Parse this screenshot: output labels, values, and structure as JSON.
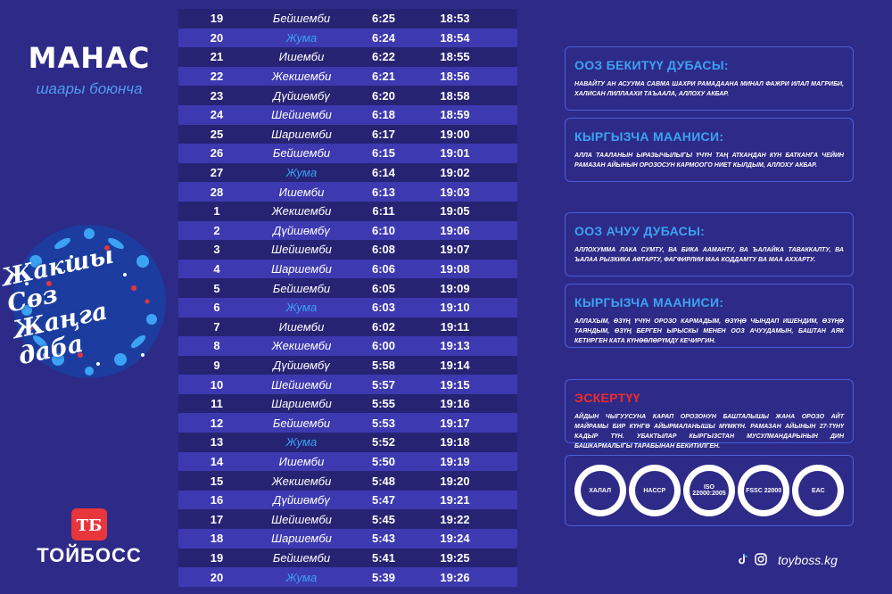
{
  "header": {
    "city": "МАНАС",
    "subtitle": "шаары боюнча"
  },
  "ornament": {
    "line1": "Жакшы Сөз",
    "line2": "Жаңга даба"
  },
  "brand": {
    "name": "ТОЙБОСС",
    "logo_text": "ТБ"
  },
  "colors": {
    "background": "#2e2a87",
    "accent_blue": "#3ca3f4",
    "warning_red": "#ee2c2c"
  },
  "table": {
    "rows": [
      {
        "day": "19",
        "weekday": "Бейшемби",
        "suhoor": "6:25",
        "iftar": "18:53",
        "friday": false
      },
      {
        "day": "20",
        "weekday": "Жума",
        "suhoor": "6:24",
        "iftar": "18:54",
        "friday": true
      },
      {
        "day": "21",
        "weekday": "Ишемби",
        "suhoor": "6:22",
        "iftar": "18:55",
        "friday": false
      },
      {
        "day": "22",
        "weekday": "Жекшемби",
        "suhoor": "6:21",
        "iftar": "18:56",
        "friday": false
      },
      {
        "day": "23",
        "weekday": "Дүйшөмбү",
        "suhoor": "6:20",
        "iftar": "18:58",
        "friday": false
      },
      {
        "day": "24",
        "weekday": "Шейшемби",
        "suhoor": "6:18",
        "iftar": "18:59",
        "friday": false
      },
      {
        "day": "25",
        "weekday": "Шаршемби",
        "suhoor": "6:17",
        "iftar": "19:00",
        "friday": false
      },
      {
        "day": "26",
        "weekday": "Бейшемби",
        "suhoor": "6:15",
        "iftar": "19:01",
        "friday": false
      },
      {
        "day": "27",
        "weekday": "Жума",
        "suhoor": "6:14",
        "iftar": "19:02",
        "friday": true
      },
      {
        "day": "28",
        "weekday": "Ишемби",
        "suhoor": "6:13",
        "iftar": "19:03",
        "friday": false
      },
      {
        "day": "1",
        "weekday": "Жекшемби",
        "suhoor": "6:11",
        "iftar": "19:05",
        "friday": false
      },
      {
        "day": "2",
        "weekday": "Дүйшөмбү",
        "suhoor": "6:10",
        "iftar": "19:06",
        "friday": false
      },
      {
        "day": "3",
        "weekday": "Шейшемби",
        "suhoor": "6:08",
        "iftar": "19:07",
        "friday": false
      },
      {
        "day": "4",
        "weekday": "Шаршемби",
        "suhoor": "6:06",
        "iftar": "19:08",
        "friday": false
      },
      {
        "day": "5",
        "weekday": "Бейшемби",
        "suhoor": "6:05",
        "iftar": "19:09",
        "friday": false
      },
      {
        "day": "6",
        "weekday": "Жума",
        "suhoor": "6:03",
        "iftar": "19:10",
        "friday": true
      },
      {
        "day": "7",
        "weekday": "Ишемби",
        "suhoor": "6:02",
        "iftar": "19:11",
        "friday": false
      },
      {
        "day": "8",
        "weekday": "Жекшемби",
        "suhoor": "6:00",
        "iftar": "19:13",
        "friday": false
      },
      {
        "day": "9",
        "weekday": "Дүйшөмбү",
        "suhoor": "5:58",
        "iftar": "19:14",
        "friday": false
      },
      {
        "day": "10",
        "weekday": "Шейшемби",
        "suhoor": "5:57",
        "iftar": "19:15",
        "friday": false
      },
      {
        "day": "11",
        "weekday": "Шаршемби",
        "suhoor": "5:55",
        "iftar": "19:16",
        "friday": false
      },
      {
        "day": "12",
        "weekday": "Бейшемби",
        "suhoor": "5:53",
        "iftar": "19:17",
        "friday": false
      },
      {
        "day": "13",
        "weekday": "Жума",
        "suhoor": "5:52",
        "iftar": "19:18",
        "friday": true
      },
      {
        "day": "14",
        "weekday": "Ишемби",
        "suhoor": "5:50",
        "iftar": "19:19",
        "friday": false
      },
      {
        "day": "15",
        "weekday": "Жекшемби",
        "suhoor": "5:48",
        "iftar": "19:20",
        "friday": false
      },
      {
        "day": "16",
        "weekday": "Дүйшөмбү",
        "suhoor": "5:47",
        "iftar": "19:21",
        "friday": false
      },
      {
        "day": "17",
        "weekday": "Шейшемби",
        "suhoor": "5:45",
        "iftar": "19:22",
        "friday": false
      },
      {
        "day": "18",
        "weekday": "Шаршемби",
        "suhoor": "5:43",
        "iftar": "19:24",
        "friday": false
      },
      {
        "day": "19",
        "weekday": "Бейшемби",
        "suhoor": "5:41",
        "iftar": "19:25",
        "friday": false
      },
      {
        "day": "20",
        "weekday": "Жума",
        "suhoor": "5:39",
        "iftar": "19:26",
        "friday": true
      }
    ]
  },
  "panels": {
    "closing_dua": {
      "title": "ООЗ БЕКИТҮҮ ДУБАСЫ:",
      "text": "НАВАЙТУ АН АСУУМА САВМА ШАХРИ РАМАДААНА МИНАЛ ФАЖРИ ИЛАЛ МАГРИБИ, ХАЛИСАН ЛИЛЛААХИ ТАЪААЛА, АЛЛОХУ АКБАР."
    },
    "closing_meaning": {
      "title": "КЫРГЫЗЧА МААНИСИ:",
      "text": "АЛЛА ТААЛАНЫН ЫРАЗЫЧЫЛЫГЫ ҮЧҮН ТАҢ АТКАНДАН КҮН БАТКАНГА ЧЕЙИН РАМАЗАН АЙЫНЫН ОРОЗОСУН КАРМООГО НИЕТ КЫЛДЫМ, АЛЛОХУ АКБАР."
    },
    "opening_dua": {
      "title": "ООЗ  АЧУУ ДУБАСЫ:",
      "text": "АЛЛОХУММА ЛАКА СУМТУ, ВА БИКА ААМАНТУ, ВА ЪАЛАЙКА ТАВАККАЛТУ, ВА ЪАЛАА РЫЗКИКА АФТАРТУ, ФАГФИРЛИИ МАА КОДДАМТУ ВА МАА АХХАРТУ."
    },
    "opening_meaning": {
      "title": "КЫРГЫЗЧА МААНИСИ:",
      "text": "АЛЛАХЫМ, ӨЗҮҢ ҮЧҮН ОРОЗО КАРМАДЫМ, ӨЗҮҢӨ ЧЫНДАП ИШЕНДИМ, ӨЗҮҢӨ ТАЯНДЫМ, ӨЗҮҢ БЕРГЕН ЫРЫСКЫ МЕНЕН ООЗ АЧУУДАМЫН, БАШТАН АЯК КЕТИРГЕН КАТА КҮНӨӨЛӨРҮМДҮ КЕЧИРГИН."
    },
    "note": {
      "title": "ЭСКЕРТҮҮ",
      "text": "АЙДЫН ЧЫГУУСУНА КАРАП ОРОЗОНУН БАШТАЛЫШЫ ЖАНА ОРОЗО АЙТ МАЙРАМЫ БИР КҮНГӨ АЙЫРМАЛАНЫШЫ МҮМКҮН. РАМАЗАН АЙЫНЫН 27-ТҮНҮ КАДЫР ТҮН. УБАКТЫЛАР КЫРГЫЗСТАН МУСУЛМАНДАРЫНЫН ДИН БАШКАРМАЛЫГЫ ТАРАБЫНАН БЕКИТИЛГЕН."
    }
  },
  "certifications": [
    {
      "label": "ХАЛАЛ",
      "icon": "halal-cert-icon"
    },
    {
      "label": "HACCP",
      "icon": "haccp-cert-icon"
    },
    {
      "label": "ISO 22000:2005",
      "icon": "iso-cert-icon"
    },
    {
      "label": "FSSC 22000",
      "icon": "fssc-cert-icon"
    },
    {
      "label": "EAC",
      "icon": "eac-cert-icon"
    }
  ],
  "footer": {
    "website": "toyboss.kg",
    "social_icons": [
      "tiktok-icon",
      "instagram-icon"
    ]
  }
}
